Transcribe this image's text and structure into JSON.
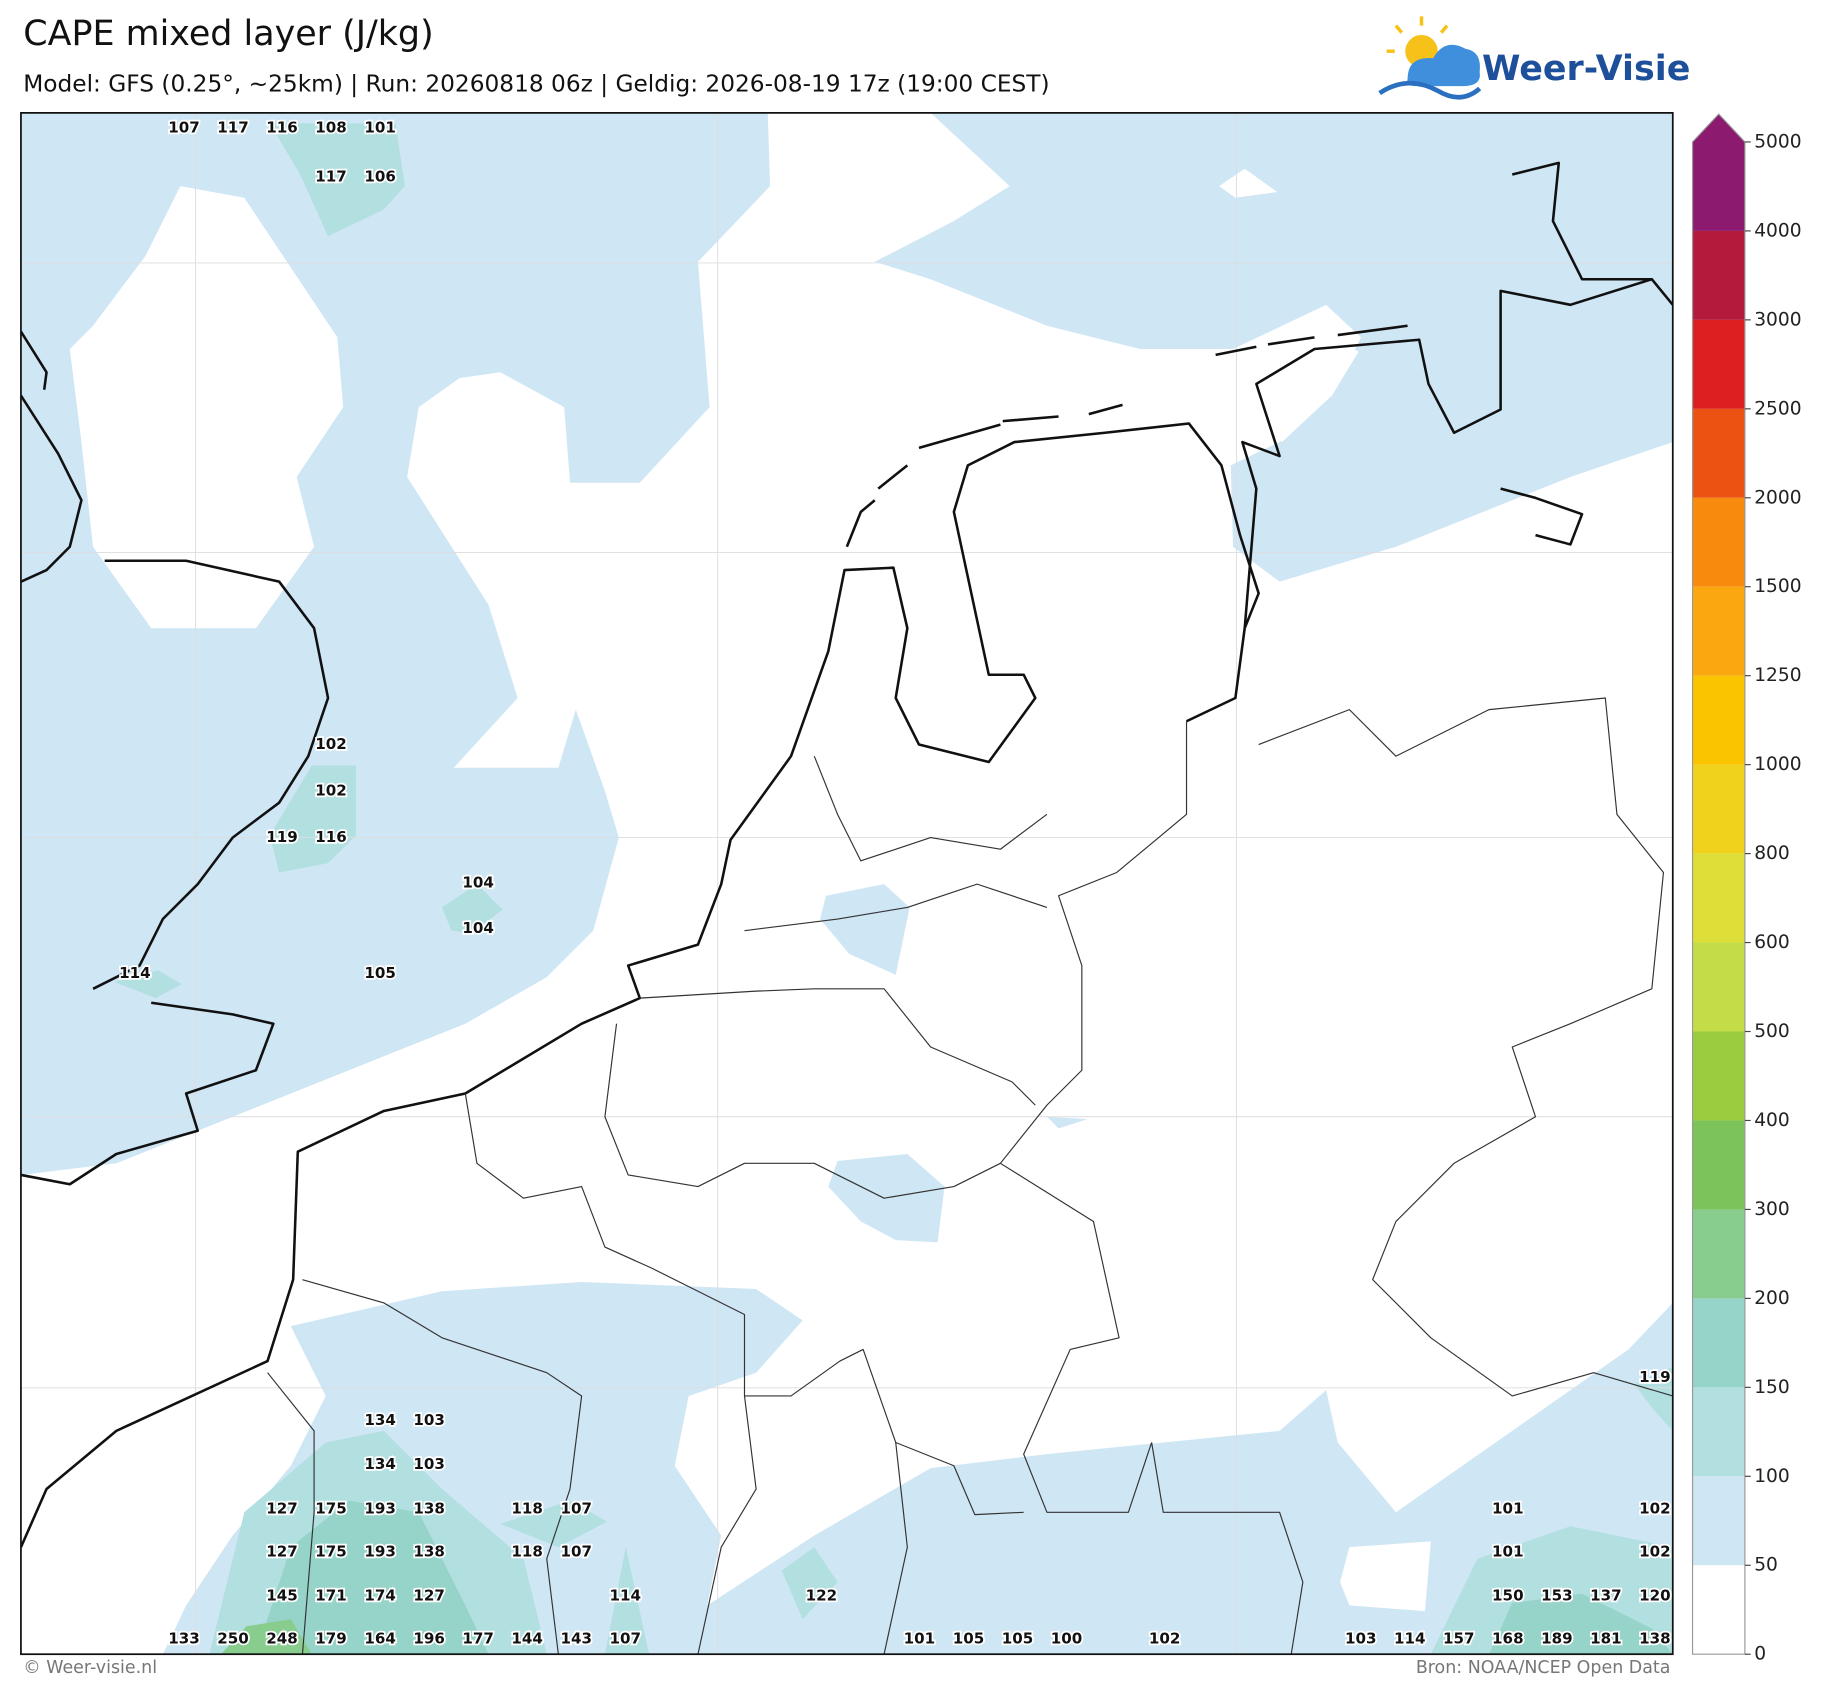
{
  "header": {
    "title": "CAPE mixed layer (J/kg)",
    "subtitle": "Model: GFS (0.25°, ~25km)  |  Run: 20260818 06z  |  Geldig: 2026-08-19 17z (19:00 CEST)"
  },
  "logo": {
    "text": "Weer-Visie"
  },
  "map": {
    "label_rows": [
      {
        "values": [
          null,
          107,
          117,
          116,
          108,
          101,
          null,
          null,
          null,
          null,
          null,
          null,
          null,
          null,
          null,
          null,
          null,
          null,
          null,
          null,
          null,
          null,
          null,
          null,
          null,
          null,
          null,
          null,
          null,
          null,
          null,
          null
        ]
      },
      {
        "values": [
          null,
          null,
          null,
          null,
          117,
          106,
          null,
          null,
          null,
          null,
          null,
          null,
          null,
          null,
          null,
          null,
          null,
          null,
          null,
          null,
          null,
          null,
          null,
          null,
          null,
          null,
          null,
          null,
          null,
          null,
          null,
          null
        ]
      },
      {
        "values": [
          null,
          null,
          null,
          null,
          102,
          null,
          null,
          null,
          null,
          null,
          null,
          null,
          null,
          null,
          null,
          null,
          null,
          null,
          null,
          null,
          null,
          null,
          null,
          null,
          null,
          null,
          null,
          null,
          null,
          null,
          null,
          null
        ]
      },
      {
        "values": [
          null,
          null,
          null,
          null,
          102,
          null,
          null,
          null,
          null,
          null,
          null,
          null,
          null,
          null,
          null,
          null,
          null,
          null,
          null,
          null,
          null,
          null,
          null,
          null,
          null,
          null,
          null,
          null,
          null,
          null,
          null,
          null
        ]
      },
      {
        "values": [
          null,
          null,
          null,
          119,
          116,
          null,
          null,
          null,
          null,
          null,
          null,
          null,
          null,
          null,
          null,
          null,
          null,
          null,
          null,
          null,
          null,
          null,
          null,
          null,
          null,
          null,
          null,
          null,
          null,
          null,
          null,
          null
        ]
      },
      {
        "values": [
          null,
          null,
          null,
          null,
          null,
          null,
          null,
          104,
          null,
          null,
          null,
          null,
          null,
          null,
          null,
          null,
          null,
          null,
          null,
          null,
          null,
          null,
          null,
          null,
          null,
          null,
          null,
          null,
          null,
          null,
          null,
          null
        ]
      },
      {
        "values": [
          null,
          null,
          null,
          null,
          null,
          null,
          null,
          104,
          null,
          null,
          null,
          null,
          null,
          null,
          null,
          null,
          null,
          null,
          null,
          null,
          null,
          null,
          null,
          null,
          null,
          null,
          null,
          null,
          null,
          null,
          null,
          null
        ]
      },
      {
        "values": [
          114,
          null,
          null,
          null,
          null,
          105,
          null,
          null,
          null,
          null,
          null,
          null,
          null,
          null,
          null,
          null,
          null,
          null,
          null,
          null,
          null,
          null,
          null,
          null,
          null,
          null,
          null,
          null,
          null,
          null,
          null,
          null
        ]
      },
      {
        "values": [
          null,
          null,
          null,
          null,
          null,
          null,
          null,
          null,
          null,
          null,
          null,
          null,
          null,
          null,
          null,
          null,
          null,
          null,
          null,
          null,
          null,
          null,
          null,
          null,
          null,
          null,
          null,
          null,
          null,
          null,
          null,
          119
        ]
      },
      {
        "values": [
          null,
          null,
          null,
          null,
          null,
          134,
          103,
          null,
          null,
          null,
          null,
          null,
          null,
          null,
          null,
          null,
          null,
          null,
          null,
          null,
          null,
          null,
          null,
          null,
          null,
          null,
          null,
          null,
          null,
          null,
          null,
          null
        ]
      },
      {
        "values": [
          null,
          null,
          null,
          null,
          null,
          134,
          103,
          null,
          null,
          null,
          null,
          null,
          null,
          null,
          null,
          null,
          null,
          null,
          null,
          null,
          null,
          null,
          null,
          null,
          null,
          null,
          null,
          null,
          null,
          null,
          null,
          null
        ]
      },
      {
        "values": [
          null,
          null,
          null,
          127,
          175,
          193,
          138,
          null,
          118,
          107,
          null,
          null,
          null,
          null,
          null,
          null,
          null,
          null,
          null,
          null,
          null,
          null,
          null,
          null,
          null,
          null,
          null,
          null,
          101,
          null,
          null,
          102
        ]
      },
      {
        "values": [
          null,
          null,
          null,
          127,
          175,
          193,
          138,
          null,
          118,
          107,
          null,
          null,
          null,
          null,
          null,
          null,
          null,
          null,
          null,
          null,
          null,
          null,
          null,
          null,
          null,
          null,
          null,
          null,
          101,
          null,
          null,
          102
        ]
      },
      {
        "values": [
          null,
          null,
          null,
          145,
          171,
          174,
          127,
          null,
          null,
          null,
          114,
          null,
          null,
          null,
          122,
          null,
          null,
          null,
          null,
          null,
          null,
          null,
          null,
          null,
          null,
          null,
          null,
          null,
          150,
          153,
          137,
          120
        ]
      },
      {
        "values": [
          null,
          133,
          250,
          248,
          179,
          164,
          196,
          177,
          144,
          143,
          107,
          null,
          null,
          null,
          null,
          null,
          101,
          105,
          105,
          100,
          null,
          102,
          null,
          null,
          null,
          103,
          114,
          157,
          168,
          189,
          181,
          138
        ]
      }
    ]
  },
  "colorbar": {
    "ticks": [
      0,
      50,
      100,
      150,
      200,
      300,
      400,
      500,
      600,
      800,
      1000,
      1250,
      1500,
      2000,
      2500,
      3000,
      4000,
      5000
    ],
    "colors": [
      "#ffffff",
      "#cfe6f5",
      "#b2dfe0",
      "#96d3c8",
      "#88cc8e",
      "#7cc45a",
      "#9bcc40",
      "#c3dc48",
      "#dede38",
      "#f0d21c",
      "#fbc400",
      "#fba710",
      "#f88a0e",
      "#ec5312",
      "#dc2020",
      "#b31a3c",
      "#8c1a6e"
    ]
  },
  "footer": {
    "left": "© Weer-visie.nl",
    "right": "Bron: NOAA/NCEP Open Data"
  }
}
